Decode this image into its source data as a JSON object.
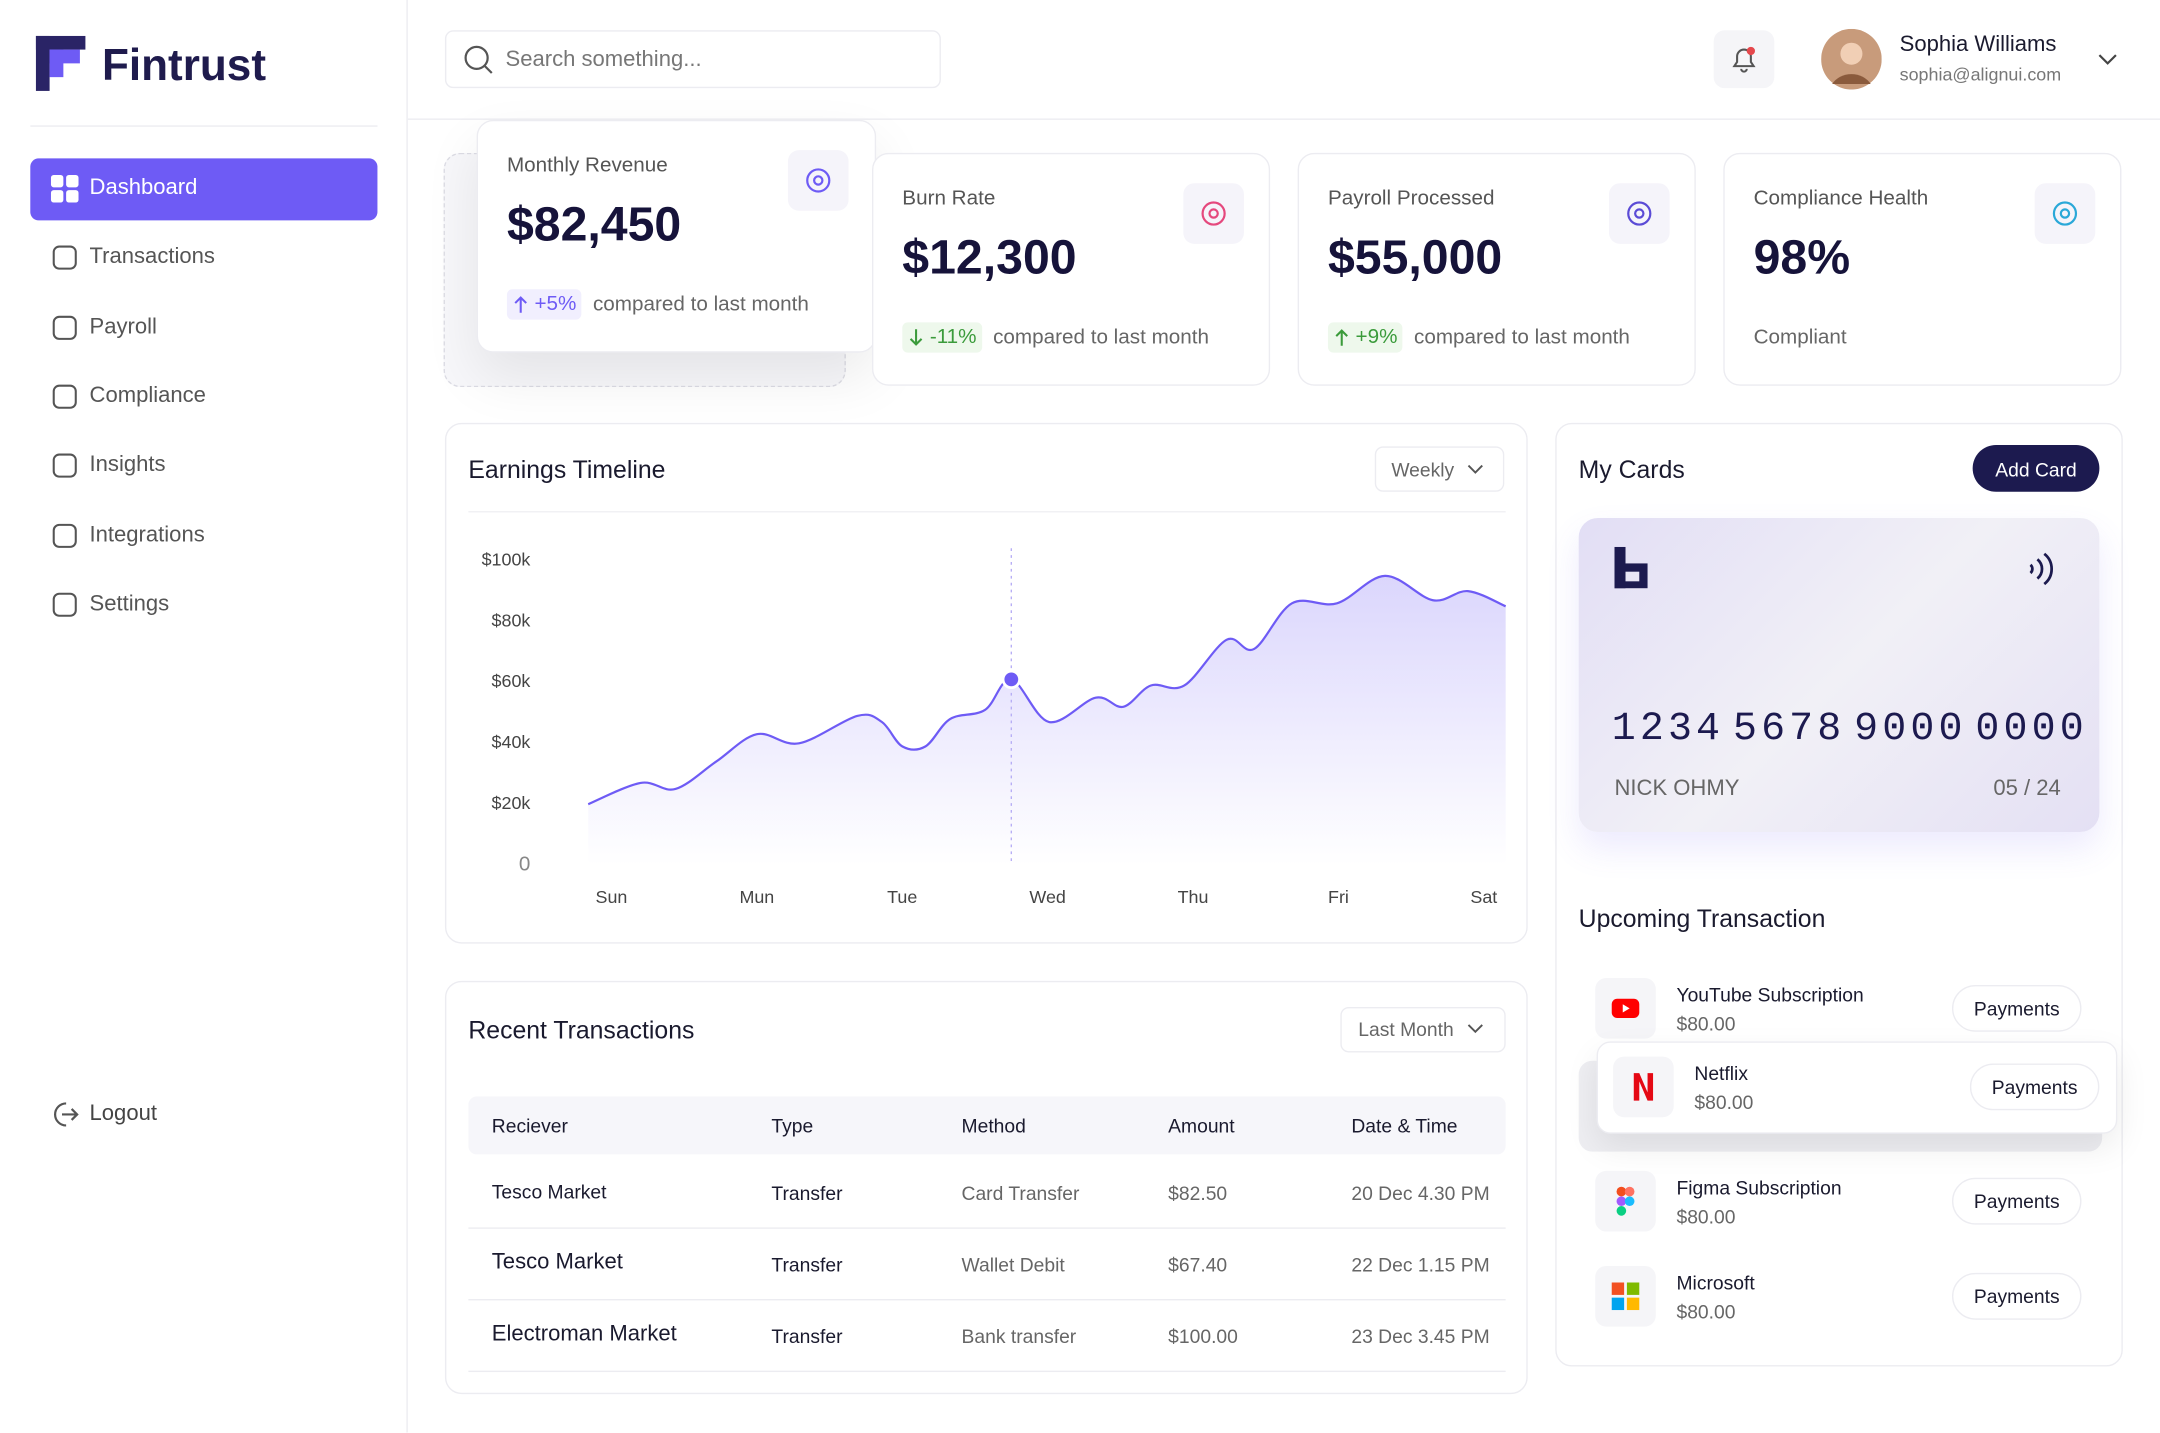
{
  "brand": "Fintrust",
  "nav": [
    "Dashboard",
    "Transactions",
    "Payroll",
    "Compliance",
    "Insights",
    "Integrations",
    "Settings"
  ],
  "logout": "Logout",
  "search_placeholder": "Search something...",
  "user": {
    "name": "Sophia Williams",
    "email": "sophia@alignui.com"
  },
  "stats": [
    {
      "label": "Monthly Revenue",
      "value": "$82,450",
      "change": "+5%",
      "note": "compared to last month",
      "color": "#6e5bf5"
    },
    {
      "label": "Burn Rate",
      "value": "$12,300",
      "change": "-11%",
      "note": "compared to last month",
      "color": "#3b9b3b"
    },
    {
      "label": "Payroll Processed",
      "value": "$55,000",
      "change": "+9%",
      "note": "compared to last month",
      "color": "#3b9b3b"
    },
    {
      "label": "Compliance Health",
      "value": "98%",
      "note": "Compliant"
    }
  ],
  "chart_data": {
    "type": "line",
    "title": "Earnings Timeline",
    "period": "Weekly",
    "color": "#6e5bf5",
    "x": [
      -0.16,
      0.2,
      0.44,
      0.72,
      1.0,
      1.29,
      1.69,
      1.86,
      2.0,
      2.16,
      2.33,
      2.57,
      2.75,
      3.01,
      3.33,
      3.52,
      3.71,
      3.94,
      4.23,
      4.42,
      4.68,
      4.99,
      5.32,
      5.65,
      5.89,
      6.15
    ],
    "values": [
      20000,
      27000,
      25000,
      34000,
      43000,
      40000,
      49000,
      47000,
      39000,
      39000,
      48000,
      51000,
      61000,
      47000,
      55000,
      52000,
      59000,
      59000,
      74000,
      71000,
      86000,
      86000,
      95000,
      87000,
      90000,
      85000
    ],
    "highlight_index": 12,
    "xlim": [
      -0.16,
      6.15
    ],
    "xticks": [
      {
        "value": 0,
        "label": "Sun"
      },
      {
        "value": 1,
        "label": "Mun"
      },
      {
        "value": 2,
        "label": "Tue"
      },
      {
        "value": 3,
        "label": "Wed"
      },
      {
        "value": 4,
        "label": "Thu"
      },
      {
        "value": 5,
        "label": "Fri"
      },
      {
        "value": 6,
        "label": "Sat"
      }
    ],
    "ylim": [
      0,
      100000
    ],
    "yticks": [
      0,
      {
        "value": 20000,
        "label": "$20k"
      },
      {
        "value": 40000,
        "label": "$40k"
      },
      {
        "value": 60000,
        "label": "$60k"
      },
      {
        "value": 80000,
        "label": "$80k"
      },
      {
        "value": 100000,
        "label": "$100k"
      }
    ],
    "grid": false
  },
  "cards": {
    "title": "My Cards",
    "add": "Add Card",
    "number": [
      "1234",
      "5678",
      "9000",
      "0000"
    ],
    "holder": "NICK OHMY",
    "expiry": "05 / 24"
  },
  "upcoming": {
    "title": "Upcoming Transaction",
    "items": [
      {
        "name": "YouTube Subscription",
        "amount": "$80.00",
        "action": "Payments"
      },
      {
        "name": "Netflix",
        "amount": "$80.00",
        "action": "Payments"
      },
      {
        "name": "Figma Subscription",
        "amount": "$80.00",
        "action": "Payments"
      },
      {
        "name": "Microsoft",
        "amount": "$80.00",
        "action": "Payments"
      }
    ]
  },
  "transactions": {
    "title": "Recent Transactions",
    "filter": "Last Month",
    "columns": [
      "Reciever",
      "Type",
      "Method",
      "Amount",
      "Date & Time"
    ],
    "rows": [
      [
        "Tesco Market",
        "Transfer",
        "Card Transfer",
        "$82.50",
        "20 Dec 4.30 PM"
      ],
      [
        "Tesco Market",
        "Transfer",
        "Wallet Debit",
        "$67.40",
        "22 Dec 1.15 PM"
      ],
      [
        "Electroman Market",
        "Transfer",
        "Bank transfer",
        "$100.00",
        "23 Dec 3.45 PM"
      ]
    ]
  }
}
